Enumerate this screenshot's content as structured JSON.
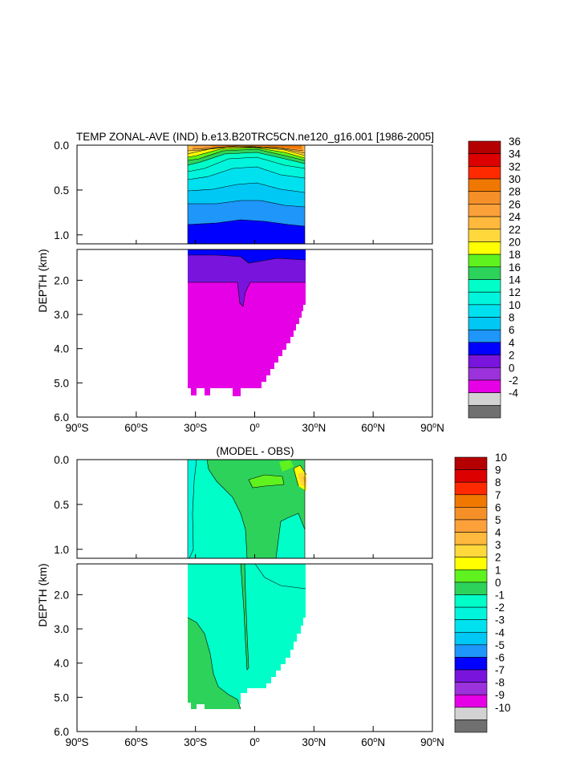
{
  "chart_data": [
    {
      "type": "heatmap",
      "title": "TEMP ZONAL-AVE (IND) b.e13.B20TRC5CN.ne120_g16.001 [1986-2005]",
      "ylabel": "DEPTH (km)",
      "xlabel": "",
      "x_ticks": [
        {
          "value": -90,
          "label": "90°S",
          "num": "90",
          "hemi": "S"
        },
        {
          "value": -60,
          "label": "60°S",
          "num": "60",
          "hemi": "S"
        },
        {
          "value": -30,
          "label": "30°S",
          "num": "30",
          "hemi": "S"
        },
        {
          "value": 0,
          "label": "0°",
          "num": "0",
          "hemi": ""
        },
        {
          "value": 30,
          "label": "30°N",
          "num": "30",
          "hemi": "N"
        },
        {
          "value": 60,
          "label": "60°N",
          "num": "60",
          "hemi": "N"
        },
        {
          "value": 90,
          "label": "90°N",
          "num": "90",
          "hemi": "N"
        }
      ],
      "upper_panel": {
        "ylim": [
          0,
          1.1
        ],
        "ticks": [
          "0.0",
          "0.5",
          "1.0"
        ]
      },
      "lower_panel": {
        "ylim": [
          1.1,
          6.0
        ],
        "ticks": [
          "2.0",
          "3.0",
          "4.0",
          "5.0",
          "6.0"
        ]
      },
      "xlim": [
        -90,
        90
      ],
      "colorbar": {
        "levels": [
          "36",
          "34",
          "32",
          "30",
          "28",
          "26",
          "24",
          "22",
          "20",
          "18",
          "16",
          "14",
          "12",
          "10",
          "8",
          "6",
          "4",
          "2",
          "0",
          "-2",
          "-4"
        ],
        "colors": [
          "#b40000",
          "#dc0000",
          "#ff2a00",
          "#f07800",
          "#f59028",
          "#fca03a",
          "#ffb93c",
          "#ffd83c",
          "#ffff00",
          "#5ff21e",
          "#2dd25a",
          "#00ffc8",
          "#00f5dc",
          "#00e1f0",
          "#00c8f5",
          "#1e96fa",
          "#0000ff",
          "#7814dc",
          "#9b32dc",
          "#e600e6",
          "#d2d2d2",
          "#707070"
        ]
      }
    },
    {
      "type": "heatmap",
      "title": "(MODEL - OBS)",
      "ylabel": "DEPTH (km)",
      "xlabel": "",
      "x_ticks": [
        {
          "value": -90,
          "label": "90°S",
          "num": "90",
          "hemi": "S"
        },
        {
          "value": -60,
          "label": "60°S",
          "num": "60",
          "hemi": "S"
        },
        {
          "value": -30,
          "label": "30°S",
          "num": "30",
          "hemi": "S"
        },
        {
          "value": 0,
          "label": "0°",
          "num": "0",
          "hemi": ""
        },
        {
          "value": 30,
          "label": "30°N",
          "num": "30",
          "hemi": "N"
        },
        {
          "value": 60,
          "label": "60°N",
          "num": "60",
          "hemi": "N"
        },
        {
          "value": 90,
          "label": "90°N",
          "num": "90",
          "hemi": "N"
        }
      ],
      "upper_panel": {
        "ylim": [
          0,
          1.1
        ],
        "ticks": [
          "0.0",
          "0.5",
          "1.0"
        ]
      },
      "lower_panel": {
        "ylim": [
          1.1,
          6.0
        ],
        "ticks": [
          "2.0",
          "3.0",
          "4.0",
          "5.0",
          "6.0"
        ]
      },
      "xlim": [
        -90,
        90
      ],
      "colorbar": {
        "levels": [
          "10",
          "9",
          "8",
          "7",
          "6",
          "5",
          "4",
          "3",
          "2",
          "1",
          "0",
          "-1",
          "-2",
          "-3",
          "-4",
          "-5",
          "-6",
          "-7",
          "-8",
          "-9",
          "-10"
        ],
        "colors": [
          "#b40000",
          "#dc0000",
          "#ff2a00",
          "#f07800",
          "#f59028",
          "#fca03a",
          "#ffb93c",
          "#ffd83c",
          "#ffff00",
          "#5ff21e",
          "#2dd25a",
          "#00ffc8",
          "#00f5dc",
          "#00e1f0",
          "#00c8f5",
          "#1e96fa",
          "#0000ff",
          "#7814dc",
          "#9b32dc",
          "#e600e6",
          "#d2d2d2",
          "#707070"
        ]
      }
    }
  ]
}
